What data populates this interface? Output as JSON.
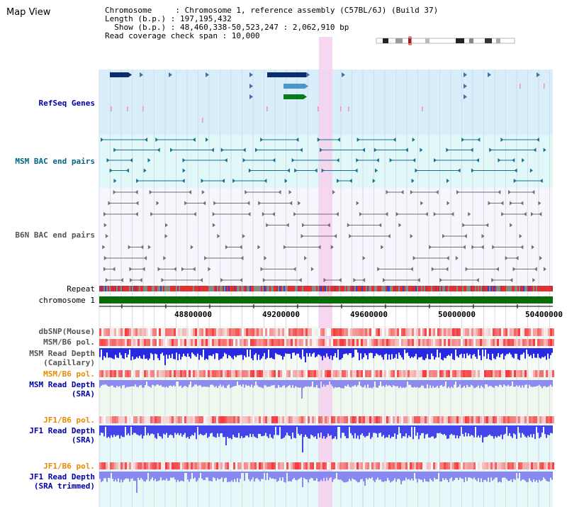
{
  "header": {
    "title": "Map View",
    "chromosome_line": "Chromosome     : Chromosome 1, reference assembly (C57BL/6J) (Build 37)",
    "length_line": "Length (b.p.) : 197,195,432",
    "show_line": "  Show (b.p.) : 48,460,338-50,523,247 : 2,062,910 bp",
    "coverage_line": "Read coverage check span : 10,000"
  },
  "tracks": {
    "refseq": "RefSeq Genes",
    "msm_bac": "MSM BAC end pairs",
    "b6n_bac": "B6N BAC end pairs",
    "repeat": "Repeat",
    "chromosome": "chromosome 1",
    "dbsnp": "dbSNP(Mouse)",
    "msm_b6_pol_1": "MSM/B6 pol.",
    "msm_depth_cap_1": "MSM Read Depth",
    "msm_depth_cap_2": "(Capillary)",
    "msm_b6_pol_2": "MSM/B6 pol.",
    "msm_depth_sra_1": "MSM Read Depth",
    "msm_depth_sra_2": "(SRA)",
    "jf1_b6_pol_1": "JF1/B6 pol.",
    "jf1_depth_sra_1": "JF1 Read Depth",
    "jf1_depth_sra_2": "(SRA)",
    "jf1_b6_pol_2": "JF1/B6 pol.",
    "jf1_depth_trim_1": "JF1 Read Depth",
    "jf1_depth_trim_2": "(SRA trimmed)"
  },
  "axis": {
    "ticks": [
      "48800000",
      "49200000",
      "49600000",
      "50000000",
      "50400000"
    ]
  },
  "colors": {
    "refseq_bg": "#d8eefa",
    "msm_bac_bg": "#e0f8f8",
    "highlight": "#f6d0ee",
    "chromosome_bar": "#0a6b0a",
    "gene_dark": "#0b2d6b",
    "gene_light": "#4a96c8",
    "gene_green": "#0a7a1a"
  }
}
